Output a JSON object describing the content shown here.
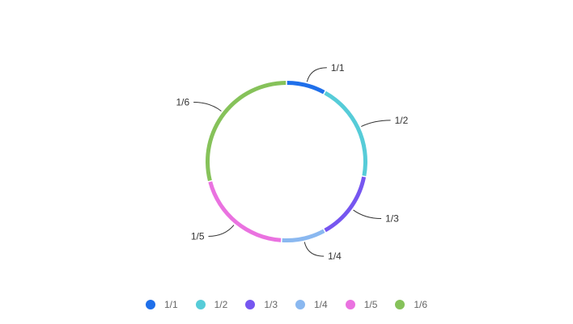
{
  "chart_data": {
    "type": "pie",
    "donut": true,
    "categories": [
      "1/1",
      "1/2",
      "1/3",
      "1/4",
      "1/5",
      "1/6"
    ],
    "values": [
      8,
      20,
      14,
      9,
      20,
      29
    ],
    "colors": [
      "#1f6fea",
      "#56ccd8",
      "#7656f0",
      "#8ab8f0",
      "#ea72e0",
      "#86c25a"
    ],
    "legend": {
      "position": "bottom",
      "items": [
        "1/1",
        "1/2",
        "1/3",
        "1/4",
        "1/5",
        "1/6"
      ]
    },
    "slice_labels": [
      "1/1",
      "1/2",
      "1/3",
      "1/4",
      "1/5",
      "1/6"
    ]
  }
}
